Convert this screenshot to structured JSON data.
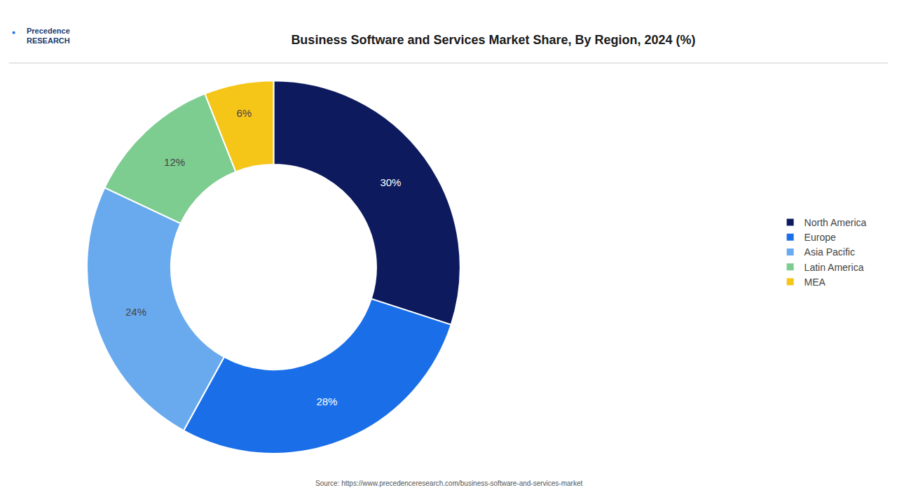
{
  "chart_data": {
    "type": "donut",
    "title": "Business Software and Services Market Share, By Region, 2024 (%)",
    "categories": [
      "North America",
      "Europe",
      "Asia Pacific",
      "Latin America",
      "MEA"
    ],
    "values": [
      30,
      28,
      24,
      12,
      6
    ],
    "value_labels": [
      "30%",
      "28%",
      "24%",
      "12%",
      "6%"
    ],
    "colors": [
      "#0d1b5e",
      "#1a6fe8",
      "#69aaee",
      "#7dcc90",
      "#f5c518"
    ],
    "data_labels": true,
    "legend": "right",
    "annotations": [
      "Source: https://www.precedenceresearch.com/business-software-and-services-market",
      "Precedence\nRESEARCH",
      "▪"
    ]
  }
}
